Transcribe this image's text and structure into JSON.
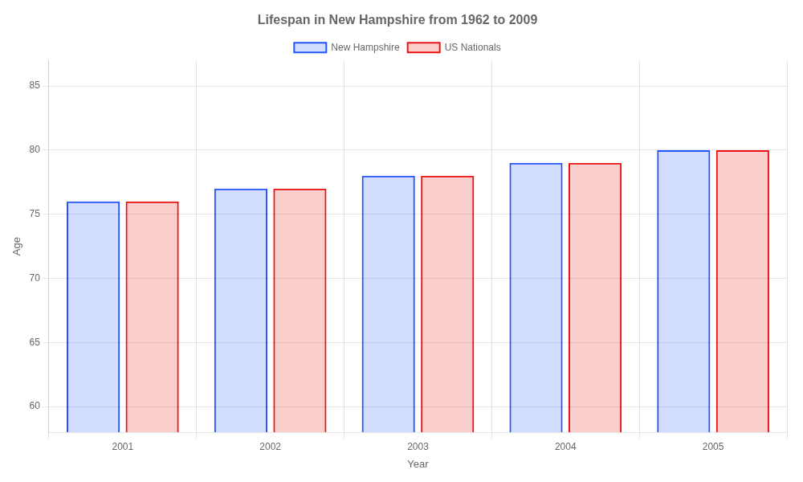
{
  "chart_data": {
    "type": "bar",
    "title": "Lifespan in New Hampshire from 1962 to 2009",
    "xlabel": "Year",
    "ylabel": "Age",
    "categories": [
      "2001",
      "2002",
      "2003",
      "2004",
      "2005"
    ],
    "series": [
      {
        "name": "New Hampshire",
        "color": "#2255ff",
        "values": [
          76,
          77,
          78,
          79,
          80
        ]
      },
      {
        "name": "US Nationals",
        "color": "#ee1111",
        "values": [
          76,
          77,
          78,
          79,
          80
        ]
      }
    ],
    "ylim": [
      58,
      87
    ],
    "yticks": [
      60,
      65,
      70,
      75,
      80,
      85
    ],
    "grid": true,
    "legend": "top"
  }
}
